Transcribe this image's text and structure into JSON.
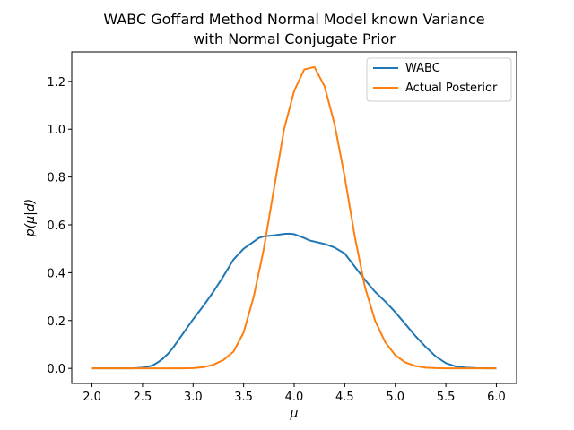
{
  "chart_data": {
    "type": "line",
    "title_line1": "WABC Goffard Method Normal Model known Variance",
    "title_line2": "with Normal Conjugate Prior",
    "xlabel": "μ",
    "ylabel": "p(μ|d)",
    "xlim": [
      1.8,
      6.2
    ],
    "ylim": [
      -0.063,
      1.323
    ],
    "xticks": [
      "2.0",
      "2.5",
      "3.0",
      "3.5",
      "4.0",
      "4.5",
      "5.0",
      "5.5",
      "6.0"
    ],
    "yticks": [
      "0.0",
      "0.2",
      "0.4",
      "0.6",
      "0.8",
      "1.0",
      "1.2"
    ],
    "grid": false,
    "legend_position": "upper right",
    "series": [
      {
        "name": "WABC",
        "color": "#1f77b4",
        "x": [
          2.0,
          2.1,
          2.2,
          2.3,
          2.4,
          2.5,
          2.6,
          2.65,
          2.7,
          2.75,
          2.8,
          2.85,
          2.9,
          3.0,
          3.1,
          3.2,
          3.3,
          3.4,
          3.5,
          3.6,
          3.65,
          3.7,
          3.8,
          3.9,
          3.95,
          4.0,
          4.05,
          4.1,
          4.15,
          4.2,
          4.3,
          4.4,
          4.5,
          4.6,
          4.7,
          4.8,
          4.9,
          5.0,
          5.1,
          5.2,
          5.3,
          5.4,
          5.5,
          5.6,
          5.7,
          5.8,
          5.9,
          6.0
        ],
        "y": [
          0.0,
          0.0,
          0.0,
          0.0,
          0.0,
          0.003,
          0.012,
          0.025,
          0.04,
          0.06,
          0.085,
          0.115,
          0.145,
          0.205,
          0.26,
          0.32,
          0.385,
          0.455,
          0.5,
          0.53,
          0.545,
          0.552,
          0.556,
          0.562,
          0.563,
          0.561,
          0.553,
          0.545,
          0.535,
          0.53,
          0.52,
          0.505,
          0.48,
          0.425,
          0.37,
          0.32,
          0.28,
          0.235,
          0.185,
          0.135,
          0.09,
          0.05,
          0.022,
          0.008,
          0.003,
          0.001,
          0.0,
          0.0
        ]
      },
      {
        "name": "Actual Posterior",
        "color": "#ff7f0e",
        "x": [
          2.0,
          2.1,
          2.2,
          2.3,
          2.4,
          2.5,
          2.6,
          2.7,
          2.8,
          2.9,
          3.0,
          3.1,
          3.2,
          3.3,
          3.4,
          3.5,
          3.6,
          3.7,
          3.8,
          3.9,
          4.0,
          4.1,
          4.2,
          4.3,
          4.4,
          4.5,
          4.6,
          4.7,
          4.8,
          4.9,
          5.0,
          5.1,
          5.2,
          5.3,
          5.4,
          5.5,
          5.6,
          5.7,
          5.8,
          5.9,
          6.0
        ],
        "y": [
          0.0,
          0.0,
          0.0,
          0.0,
          0.0,
          0.0,
          0.0,
          0.0,
          0.0,
          0.0,
          0.001,
          0.005,
          0.015,
          0.035,
          0.07,
          0.15,
          0.3,
          0.5,
          0.75,
          1.0,
          1.16,
          1.25,
          1.26,
          1.18,
          1.02,
          0.8,
          0.55,
          0.34,
          0.2,
          0.11,
          0.055,
          0.025,
          0.01,
          0.003,
          0.001,
          0.0,
          0.0,
          0.0,
          0.0,
          0.0,
          0.0
        ]
      }
    ]
  }
}
